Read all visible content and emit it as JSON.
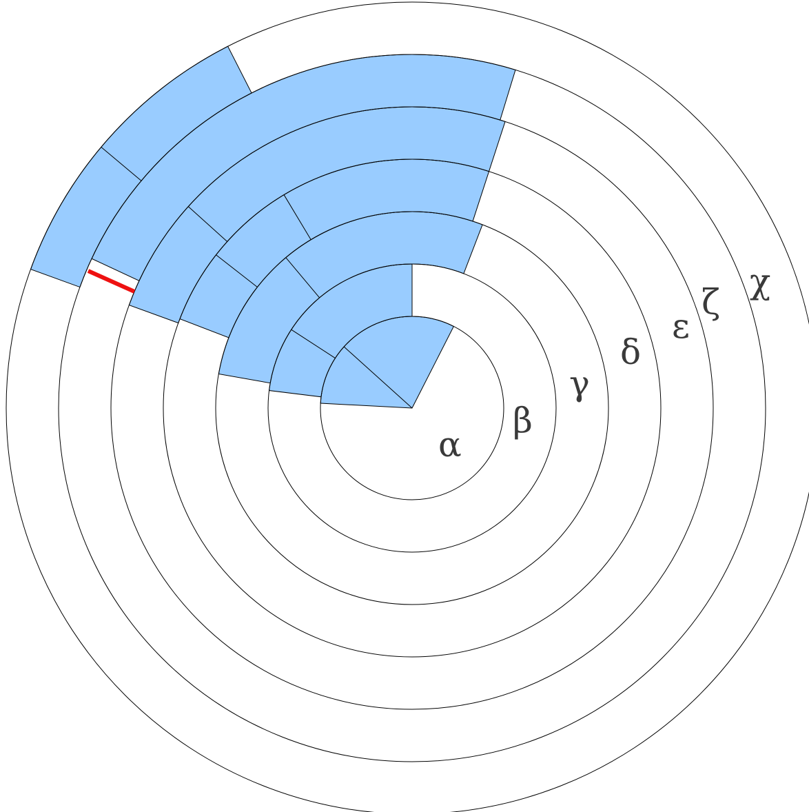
{
  "diagram": {
    "ring_labels": [
      "α",
      "β",
      "γ",
      "δ",
      "ε",
      "ζ",
      "χ"
    ],
    "colors": {
      "fill": "#99ccff",
      "stroke": "#000000",
      "highlight": "#ee1111",
      "label": "#3a3a3a"
    }
  }
}
